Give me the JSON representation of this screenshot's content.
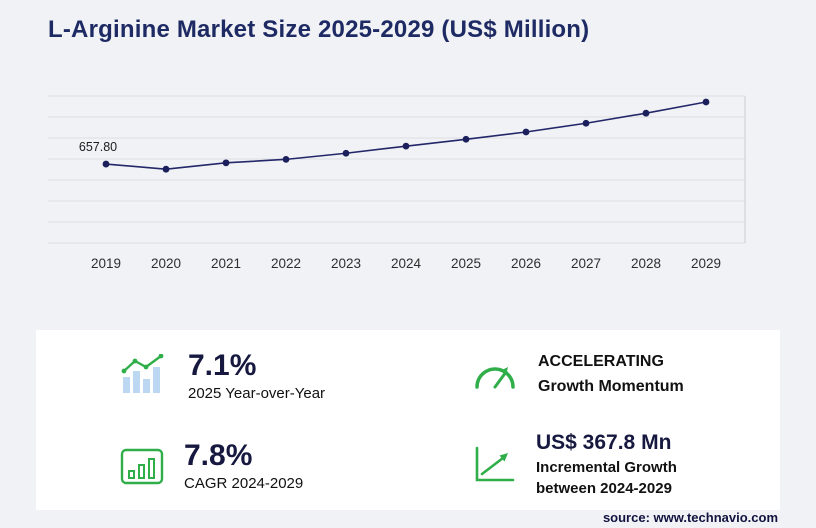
{
  "page": {
    "title": "L-Arginine Market Size 2025-2029 (US$ Million)",
    "source": "source: www.technavio.com"
  },
  "chart_data": {
    "type": "line",
    "title": "L-Arginine Market Size 2025-2029 (US$ Million)",
    "categories": [
      "2019",
      "2020",
      "2021",
      "2022",
      "2023",
      "2024",
      "2025",
      "2026",
      "2027",
      "2028",
      "2029"
    ],
    "values": [
      657.8,
      615.0,
      668.0,
      697.0,
      748.0,
      807.1,
      864.4,
      925.0,
      998.0,
      1082.0,
      1174.9
    ],
    "first_point_label": "657.80",
    "xlabel": "",
    "ylabel": "",
    "ylim": [
      0,
      1250
    ],
    "grid": true,
    "legend": "none",
    "line_color": "#23276a",
    "marker_color": "#1b1f5c"
  },
  "stats": {
    "yoy": {
      "value": "7.1%",
      "label": "2025 Year-over-Year"
    },
    "momentum": {
      "line1": "ACCELERATING",
      "line2": "Growth Momentum"
    },
    "cagr": {
      "value": "7.8%",
      "label": "CAGR 2024-2029"
    },
    "incremental": {
      "value": "US$ 367.8 Mn",
      "line1": "Incremental Growth",
      "line2": "between 2024-2029"
    }
  },
  "colors": {
    "navy": "#1e2a63",
    "green": "#2fae49",
    "grid": "#dadde3",
    "background": "#f1f2f5",
    "panel": "#ffffff"
  }
}
